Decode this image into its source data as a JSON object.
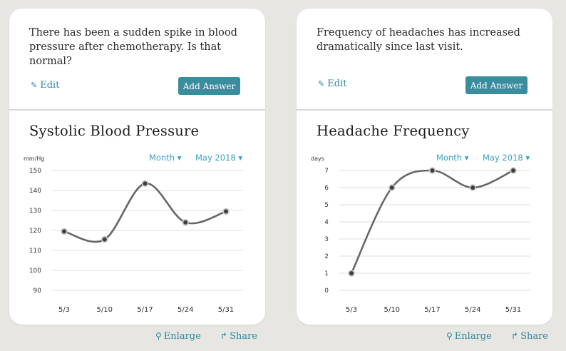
{
  "actions": {
    "edit_label": "Edit",
    "add_answer_label": "Add Answer",
    "enlarge_label": "Enlarge",
    "share_label": "Share"
  },
  "cards": [
    {
      "question": "There has been a sudden spike in blood pressure after chemotherapy. Is that normal?",
      "chart_title": "Systolic Blood Pressure",
      "period_label": "Month",
      "date_label": "May 2018"
    },
    {
      "question": "Frequency of headaches has increased dramatically since last visit.",
      "chart_title": "Headache Frequency",
      "period_label": "Month",
      "date_label": "May 2018"
    }
  ],
  "colors": {
    "accent": "#3a8d9d",
    "link": "#2b8a9a",
    "line": "#666666",
    "dropdown": "#3a9fc0"
  },
  "chart_data": [
    {
      "type": "line",
      "unit_label": "mm/Hg",
      "x": [
        "5/3",
        "5/10",
        "5/17",
        "5/24",
        "5/31"
      ],
      "yticks": [
        90,
        100,
        110,
        120,
        130,
        140,
        150
      ],
      "ylim": [
        90,
        150
      ],
      "series": [
        {
          "values": [
            119.5,
            115.5,
            143.5,
            124,
            129.5
          ]
        }
      ],
      "grid": true
    },
    {
      "type": "line",
      "unit_label": "days",
      "x": [
        "5/3",
        "5/10",
        "5/17",
        "5/24",
        "5/31"
      ],
      "yticks": [
        0,
        1,
        2,
        3,
        4,
        5,
        6,
        7
      ],
      "ylim": [
        0,
        7
      ],
      "series": [
        {
          "values": [
            1,
            6,
            7,
            6,
            7
          ]
        }
      ],
      "grid": true
    }
  ]
}
